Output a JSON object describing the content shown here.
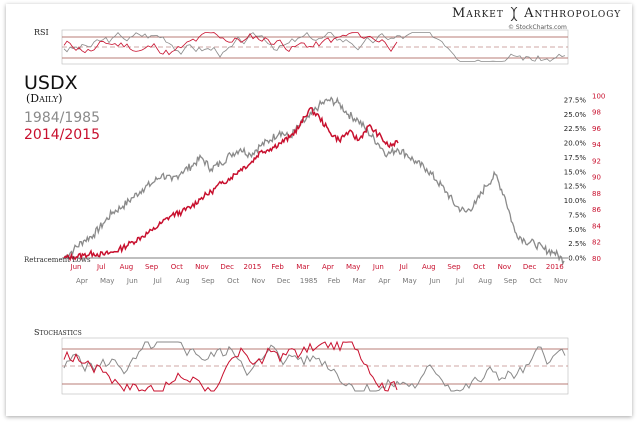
{
  "brand": {
    "left": "Market",
    "right": "Anthropology"
  },
  "credit": "© StockCharts.com",
  "rsi_label": "RSI",
  "stochastics_label": "Stochastics",
  "retracement_label": "Retracement Lows",
  "colors": {
    "gray": "#8a8a8a",
    "red": "#c8102e"
  },
  "chart_data": {
    "type": "line",
    "title": "USDX",
    "subtitle": "(Daily)",
    "legend": [
      "1984/1985",
      "2014/2015"
    ],
    "x_ticks_top": [
      "Jun",
      "Jul",
      "Aug",
      "Sep",
      "Oct",
      "Nov",
      "Dec",
      "2015",
      "Feb",
      "Mar",
      "Apr",
      "May",
      "Jun",
      "Jul",
      "Aug",
      "Sep",
      "Oct",
      "Nov",
      "Dec",
      "2016"
    ],
    "x_ticks_bottom": [
      "Apr",
      "May",
      "Jun",
      "Jul",
      "Aug",
      "Sep",
      "Oct",
      "Nov",
      "Dec",
      "1985",
      "Feb",
      "Mar",
      "Apr",
      "May",
      "Jun",
      "Jul",
      "Aug",
      "Sep",
      "Oct",
      "Nov"
    ],
    "y_pct_ticks": [
      "27.5%",
      "25.0%",
      "22.5%",
      "20.0%",
      "17.5%",
      "15.0%",
      "12.5%",
      "10.0%",
      "7.5%",
      "5.0%",
      "2.5%",
      "0.0%"
    ],
    "y_pct_range": [
      0,
      27.5
    ],
    "y_usdx_ticks": [
      "100",
      "98",
      "96",
      "94",
      "92",
      "90",
      "88",
      "86",
      "84",
      "82",
      "80"
    ],
    "y_usdx_range": [
      79.8,
      100
    ],
    "series": [
      {
        "name": "1984/1985",
        "values": [
          0.0,
          1.5,
          3.0,
          4.0,
          6.0,
          8.0,
          9.0,
          10.5,
          12.0,
          13.0,
          14.5,
          13.5,
          15.0,
          16.0,
          17.5,
          15.5,
          16.5,
          18.0,
          19.0,
          18.0,
          19.5,
          20.5,
          22.0,
          21.0,
          23.0,
          24.5,
          26.5,
          27.5,
          27.0,
          25.0,
          24.0,
          22.0,
          20.0,
          18.0,
          19.0,
          18.0,
          16.5,
          15.5,
          13.5,
          11.5,
          9.0,
          8.0,
          9.5,
          12.5,
          14.5,
          10.5,
          4.5,
          3.0,
          2.5,
          1.5,
          1.0,
          -0.5
        ]
      },
      {
        "name": "2014/2015",
        "values": [
          0.0,
          0.2,
          0.5,
          0.8,
          0.6,
          1.0,
          1.8,
          2.8,
          3.8,
          4.8,
          6.2,
          7.5,
          8.0,
          9.0,
          10.5,
          11.5,
          13.0,
          14.0,
          15.5,
          16.5,
          18.5,
          19.0,
          20.0,
          21.0,
          23.0,
          26.0,
          24.5,
          22.0,
          20.5,
          22.0,
          20.5,
          23.0,
          21.5,
          19.5,
          20.0
        ]
      }
    ]
  }
}
